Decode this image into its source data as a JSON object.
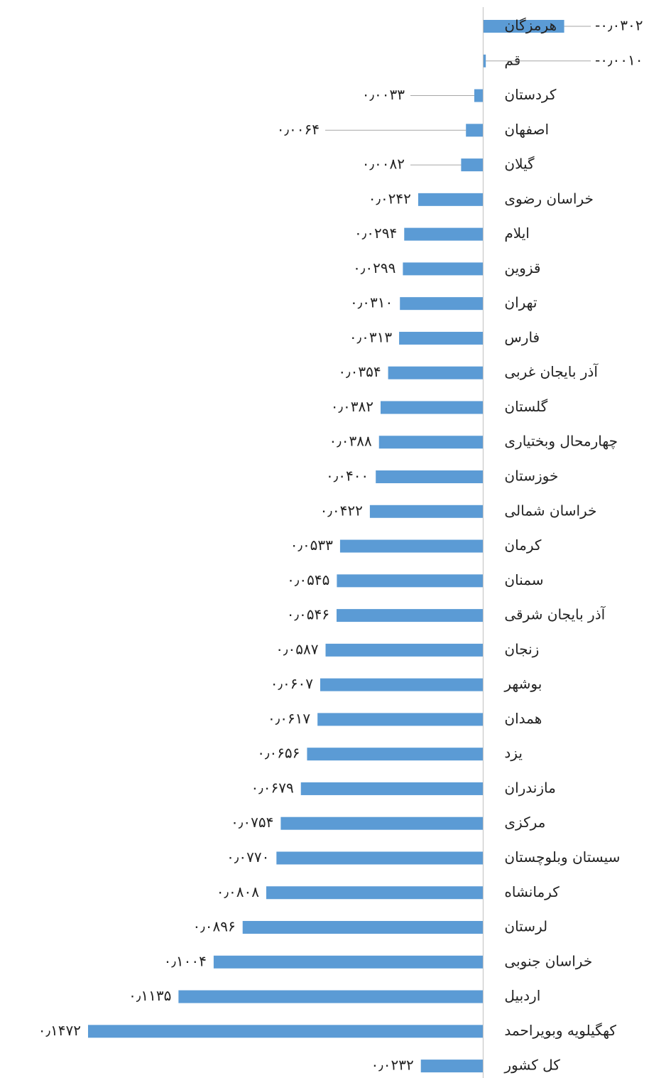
{
  "chart_data": {
    "type": "bar",
    "orientation": "horizontal",
    "color": "#5b9bd5",
    "xlim": [
      0.18,
      -0.07
    ],
    "categories": [
      "هرمزگان",
      "قم",
      "کردستان",
      "اصفهان",
      "گیلان",
      "خراسان رضوی",
      "ایلام",
      "قزوین",
      "تهران",
      "فارس",
      "آذر بایجان غربی",
      "گلستان",
      "چهارمحال وبختیاری",
      "خوزستان",
      "خراسان شمالی",
      "کرمان",
      "سمنان",
      "آذر بایجان شرقی",
      "زنجان",
      "بوشهر",
      "همدان",
      "یزد",
      "مازندران",
      "مرکزی",
      "سیستان وبلوچستان",
      "کرمانشاه",
      "لرستان",
      "خراسان جنوبی",
      "اردبیل",
      "کهگیلویه وبویراحمد",
      "کل کشور"
    ],
    "values": [
      -0.0302,
      -0.001,
      0.0033,
      0.0064,
      0.0082,
      0.0242,
      0.0294,
      0.0299,
      0.031,
      0.0313,
      0.0354,
      0.0382,
      0.0388,
      0.04,
      0.0422,
      0.0533,
      0.0545,
      0.0546,
      0.0587,
      0.0607,
      0.0617,
      0.0656,
      0.0679,
      0.0754,
      0.077,
      0.0808,
      0.0896,
      0.1004,
      0.1135,
      0.1472,
      0.0232
    ],
    "value_labels": [
      "-۰٫۰۳۰۲",
      "-۰٫۰۰۱۰",
      "۰٫۰۰۳۳",
      "۰٫۰۰۶۴",
      "۰٫۰۰۸۲",
      "۰٫۰۲۴۲",
      "۰٫۰۲۹۴",
      "۰٫۰۲۹۹",
      "۰٫۰۳۱۰",
      "۰٫۰۳۱۳",
      "۰٫۰۳۵۴",
      "۰٫۰۳۸۲",
      "۰٫۰۳۸۸",
      "۰٫۰۴۰۰",
      "۰٫۰۴۲۲",
      "۰٫۰۵۳۳",
      "۰٫۰۵۴۵",
      "۰٫۰۵۴۶",
      "۰٫۰۵۸۷",
      "۰٫۰۶۰۷",
      "۰٫۰۶۱۷",
      "۰٫۰۶۵۶",
      "۰٫۰۶۷۹",
      "۰٫۰۷۵۴",
      "۰٫۰۷۷۰",
      "۰٫۰۸۰۸",
      "۰٫۰۸۹۶",
      "۰٫۱۰۰۴",
      "۰٫۱۱۳۵",
      "۰٫۱۴۷۲",
      "۰٫۰۲۳۲"
    ]
  }
}
